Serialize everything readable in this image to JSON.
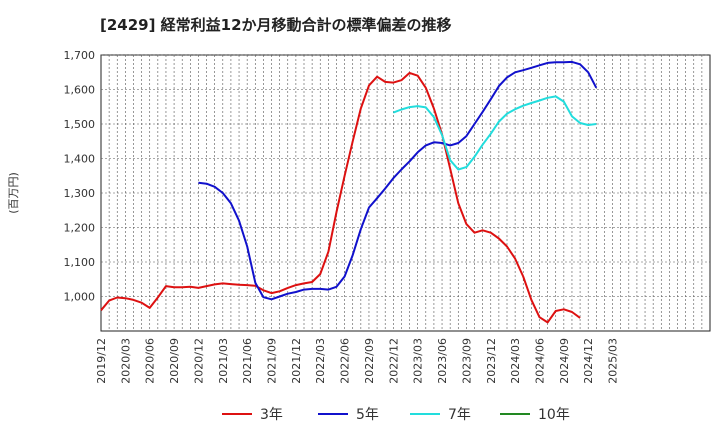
{
  "chart_data": {
    "type": "line",
    "title": "[2429]  経常利益12か月移動合計の標準偏差の推移",
    "ylabel": "(百万円)",
    "xlabel": "",
    "ylim": [
      900,
      1700
    ],
    "yticks": [
      1000,
      1100,
      1200,
      1300,
      1400,
      1500,
      1600,
      1700
    ],
    "ytick_labels": [
      "1,000",
      "1,100",
      "1,200",
      "1,300",
      "1,400",
      "1,500",
      "1,600",
      "1,700"
    ],
    "xlim_months": [
      0,
      75
    ],
    "xtick_labels": [
      "2019/12",
      "2020/03",
      "2020/06",
      "2020/09",
      "2020/12",
      "2021/03",
      "2021/06",
      "2021/09",
      "2021/12",
      "2022/03",
      "2022/06",
      "2022/09",
      "2022/12",
      "2023/03",
      "2023/06",
      "2023/09",
      "2023/12",
      "2024/03",
      "2024/06",
      "2024/09",
      "2024/12",
      "2025/03"
    ],
    "grid": true,
    "legend_position": "bottom",
    "series": [
      {
        "name": "3年",
        "color": "#dd1111",
        "start_month": 0,
        "values": [
          960,
          988,
          997,
          995,
          990,
          982,
          967,
          997,
          1030,
          1027,
          1027,
          1028,
          1025,
          1030,
          1035,
          1038,
          1036,
          1034,
          1033,
          1031,
          1018,
          1010,
          1015,
          1025,
          1033,
          1038,
          1042,
          1065,
          1130,
          1245,
          1350,
          1450,
          1545,
          1612,
          1637,
          1622,
          1620,
          1627,
          1648,
          1640,
          1605,
          1545,
          1470,
          1370,
          1270,
          1210,
          1185,
          1192,
          1185,
          1168,
          1145,
          1110,
          1058,
          990,
          940,
          925,
          958,
          963,
          955,
          938
        ]
      },
      {
        "name": "5年",
        "color": "#1111cc",
        "start_month": 12,
        "values": [
          1330,
          1327,
          1318,
          1300,
          1270,
          1220,
          1145,
          1040,
          998,
          992,
          1000,
          1008,
          1013,
          1020,
          1022,
          1022,
          1020,
          1028,
          1058,
          1120,
          1195,
          1258,
          1285,
          1313,
          1343,
          1368,
          1392,
          1418,
          1438,
          1447,
          1445,
          1438,
          1445,
          1465,
          1500,
          1535,
          1572,
          1610,
          1635,
          1650,
          1656,
          1663,
          1670,
          1677,
          1679,
          1679,
          1680,
          1673,
          1650,
          1605
        ]
      },
      {
        "name": "7年",
        "color": "#22dddd",
        "start_month": 36,
        "values": [
          1533,
          1542,
          1549,
          1552,
          1548,
          1520,
          1468,
          1395,
          1368,
          1375,
          1405,
          1440,
          1472,
          1507,
          1530,
          1543,
          1553,
          1561,
          1568,
          1576,
          1580,
          1565,
          1522,
          1503,
          1497,
          1500
        ]
      },
      {
        "name": "10年",
        "color": "#228822",
        "start_month": 0,
        "values": []
      }
    ]
  }
}
